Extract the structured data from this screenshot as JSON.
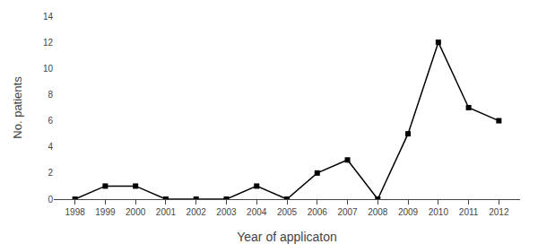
{
  "chart_data": {
    "type": "line",
    "x": [
      1998,
      1999,
      2000,
      2001,
      2002,
      2003,
      2004,
      2005,
      2006,
      2007,
      2008,
      2009,
      2010,
      2011,
      2012
    ],
    "values": [
      0,
      1,
      1,
      0,
      0,
      0,
      1,
      0,
      2,
      3,
      0,
      5,
      12,
      7,
      6
    ],
    "xlabel": "Year of applicaton",
    "ylabel": "No. patients",
    "xlim": [
      1997.3,
      2012.7
    ],
    "xticks": [
      1998,
      1999,
      2000,
      2001,
      2002,
      2003,
      2004,
      2005,
      2006,
      2007,
      2008,
      2009,
      2010,
      2011,
      2012
    ],
    "ylim": [
      0,
      14
    ],
    "yticks": [
      0,
      2,
      4,
      6,
      8,
      10,
      12,
      14
    ],
    "color": "#000000",
    "marker": "square",
    "line_style": "solid",
    "grid": false
  }
}
